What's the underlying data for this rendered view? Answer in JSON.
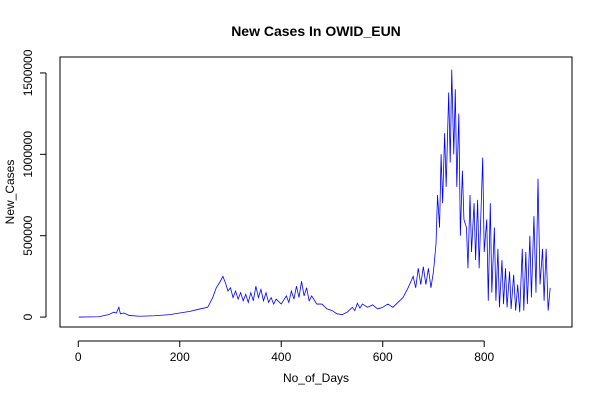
{
  "chart_data": {
    "type": "line",
    "title": "New Cases In OWID_EUN",
    "x_label": "No_of_Days",
    "y_label": "New_Cases",
    "series": [
      {
        "name": "New_Cases",
        "color": "#0000ff",
        "x": [
          1,
          40,
          60,
          70,
          75,
          80,
          83,
          90,
          100,
          120,
          150,
          180,
          200,
          220,
          240,
          255,
          265,
          272,
          280,
          285,
          290,
          295,
          300,
          305,
          310,
          315,
          320,
          325,
          330,
          335,
          340,
          345,
          350,
          355,
          360,
          365,
          370,
          375,
          380,
          385,
          390,
          400,
          410,
          415,
          420,
          425,
          430,
          435,
          440,
          445,
          450,
          455,
          460,
          470,
          480,
          490,
          500,
          510,
          520,
          530,
          540,
          545,
          550,
          555,
          560,
          570,
          580,
          590,
          600,
          610,
          620,
          630,
          640,
          650,
          660,
          665,
          670,
          675,
          680,
          685,
          690,
          695,
          700,
          705,
          708,
          712,
          715,
          718,
          722,
          725,
          730,
          733,
          736,
          740,
          743,
          746,
          750,
          753,
          757,
          760,
          765,
          768,
          772,
          775,
          780,
          783,
          787,
          790,
          795,
          797,
          800,
          805,
          808,
          812,
          815,
          820,
          823,
          827,
          830,
          835,
          838,
          842,
          845,
          850,
          853,
          858,
          862,
          866,
          870,
          875,
          878,
          882,
          885,
          890,
          893,
          898,
          902,
          906,
          910,
          915,
          918,
          922,
          926,
          930
        ],
        "values": [
          0,
          2000,
          15000,
          30000,
          25000,
          60000,
          20000,
          25000,
          10000,
          5000,
          8000,
          15000,
          25000,
          35000,
          50000,
          60000,
          120000,
          180000,
          220000,
          250000,
          210000,
          160000,
          180000,
          120000,
          160000,
          110000,
          150000,
          100000,
          140000,
          90000,
          150000,
          100000,
          190000,
          120000,
          170000,
          100000,
          150000,
          90000,
          120000,
          80000,
          110000,
          80000,
          130000,
          90000,
          160000,
          110000,
          190000,
          120000,
          220000,
          130000,
          180000,
          100000,
          130000,
          80000,
          80000,
          50000,
          40000,
          20000,
          15000,
          30000,
          60000,
          40000,
          85000,
          55000,
          80000,
          60000,
          75000,
          50000,
          60000,
          80000,
          60000,
          90000,
          120000,
          180000,
          250000,
          180000,
          300000,
          200000,
          310000,
          200000,
          300000,
          180000,
          280000,
          450000,
          750000,
          550000,
          1000000,
          700000,
          1130000,
          800000,
          1380000,
          950000,
          1520000,
          1000000,
          1400000,
          800000,
          1250000,
          500000,
          900000,
          600000,
          550000,
          300000,
          750000,
          400000,
          700000,
          350000,
          720000,
          300000,
          780000,
          980000,
          400000,
          600000,
          100000,
          700000,
          150000,
          550000,
          100000,
          420000,
          60000,
          350000,
          80000,
          300000,
          60000,
          280000,
          50000,
          260000,
          40000,
          200000,
          30000,
          420000,
          40000,
          400000,
          80000,
          500000,
          120000,
          620000,
          150000,
          850000,
          200000,
          420000,
          100000,
          420000,
          40000,
          180000
        ]
      }
    ],
    "xlim": [
      -36,
      973
    ],
    "ylim": [
      -61000,
      1598000
    ],
    "xticks": [
      0,
      200,
      400,
      600,
      800
    ],
    "yticks": [
      0,
      500000,
      1000000,
      1500000
    ]
  }
}
